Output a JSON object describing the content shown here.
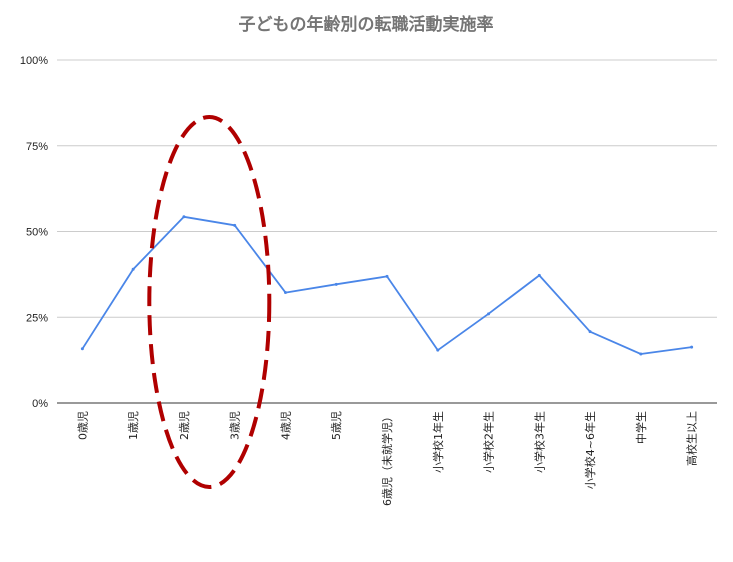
{
  "chart_data": {
    "type": "line",
    "title": "子どもの年齢別の転職活動実施率",
    "categories": [
      "0歳児",
      "1歳児",
      "2歳児",
      "3歳児",
      "4歳児",
      "5歳児",
      "6歳児（未就学児）",
      "小学校1年生",
      "小学校2年生",
      "小学校3年生",
      "小学校4~6年生",
      "中学生",
      "高校生以上"
    ],
    "series": [
      {
        "values": [
          15.8,
          39.0,
          54.3,
          51.8,
          32.2,
          34.6,
          36.9,
          15.4,
          26.0,
          37.2,
          20.8,
          14.3,
          16.3
        ]
      }
    ],
    "ylim": [
      0,
      100
    ],
    "yticks": [
      "0%",
      "25%",
      "50%",
      "75%",
      "100%"
    ],
    "ytick_values": [
      0,
      25,
      50,
      75,
      100
    ],
    "grid": true,
    "line_color": "#4a86e8",
    "annotation": {
      "shape": "dashed-ellipse",
      "color": "#b00000",
      "highlights": [
        "2歳児",
        "3歳児"
      ]
    }
  }
}
